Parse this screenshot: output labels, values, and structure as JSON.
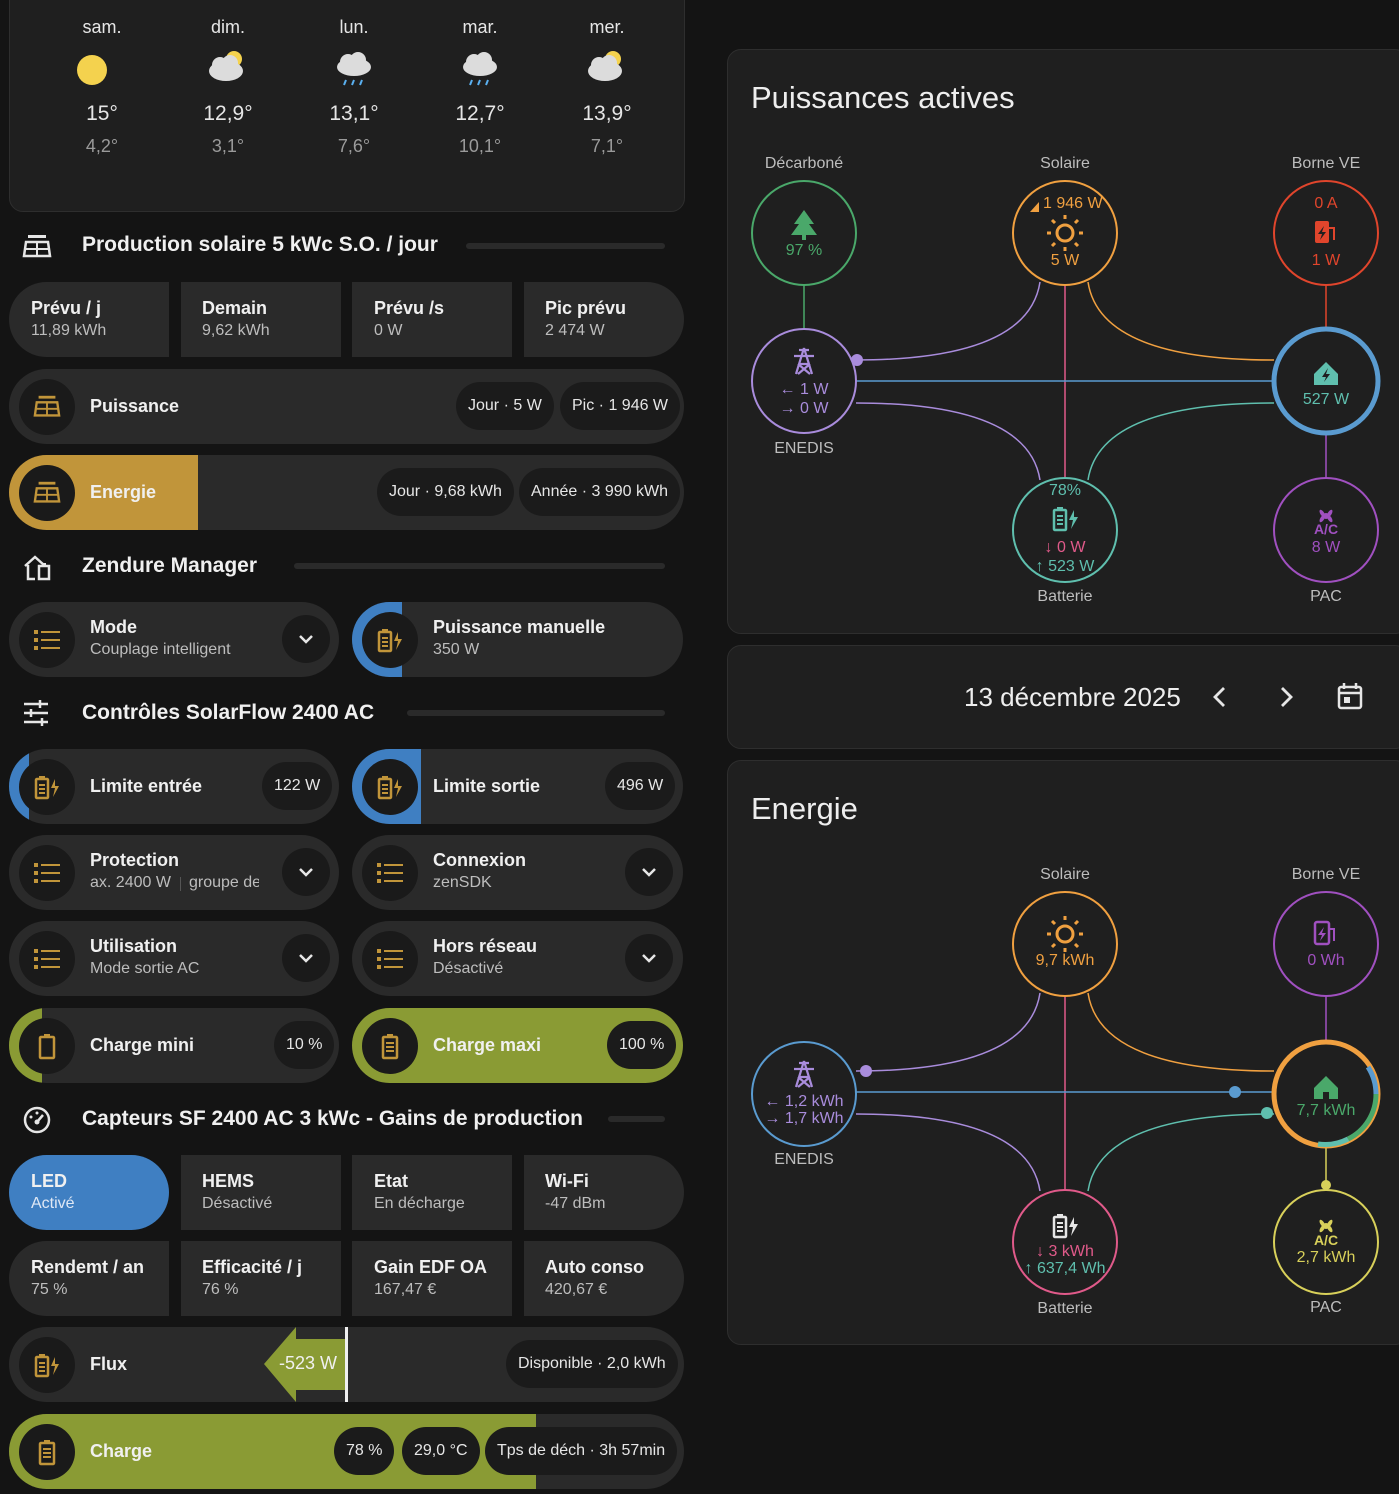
{
  "weather": {
    "days": [
      {
        "day": "sam.",
        "hi": "15°",
        "lo": "4,2°",
        "icon": "sunny-icon"
      },
      {
        "day": "dim.",
        "hi": "12,9°",
        "lo": "3,1°",
        "icon": "partly-cloudy-icon"
      },
      {
        "day": "lun.",
        "hi": "13,1°",
        "lo": "7,6°",
        "icon": "rainy-icon"
      },
      {
        "day": "mar.",
        "hi": "12,7°",
        "lo": "10,1°",
        "icon": "rainy-icon"
      },
      {
        "day": "mer.",
        "hi": "13,9°",
        "lo": "7,1°",
        "icon": "partly-cloudy-icon"
      }
    ]
  },
  "solar": {
    "title": "Production solaire 5 kWc S.O. / jour",
    "stats": [
      {
        "label": "Prévu / j",
        "value": "11,89 kWh"
      },
      {
        "label": "Demain",
        "value": "9,62 kWh"
      },
      {
        "label": "Prévu /s",
        "value": "0 W"
      },
      {
        "label": "Pic prévu",
        "value": "2 474 W"
      }
    ],
    "puissance": {
      "label": "Puissance",
      "chips": [
        "Jour · 5 W",
        "Pic · 1 946 W"
      ]
    },
    "energie": {
      "label": "Energie",
      "chips": [
        "Jour · 9,68 kWh",
        "Année · 3 990 kWh"
      ],
      "fill_fraction": 0.28
    }
  },
  "zendure": {
    "title": "Zendure Manager",
    "mode": {
      "label": "Mode",
      "value": "Couplage intelligent"
    },
    "manual": {
      "label": "Puissance manuelle",
      "value": "350 W"
    }
  },
  "controls": {
    "title": "Contrôles SolarFlow 2400 AC",
    "limite_entree": {
      "label": "Limite entrée",
      "value": "122 W"
    },
    "limite_sortie": {
      "label": "Limite sortie",
      "value": "496 W"
    },
    "protection": {
      "label": "Protection",
      "value": "ax. 2400 W",
      "value2": "groupe de"
    },
    "connexion": {
      "label": "Connexion",
      "value": "zenSDK"
    },
    "utilisation": {
      "label": "Utilisation",
      "value": "Mode sortie AC"
    },
    "hors_reseau": {
      "label": "Hors réseau",
      "value": "Désactivé"
    },
    "charge_mini": {
      "label": "Charge mini",
      "value": "10 %"
    },
    "charge_maxi": {
      "label": "Charge maxi",
      "value": "100 %"
    }
  },
  "sensors": {
    "title": "Capteurs SF 2400 AC 3 kWc - Gains de production",
    "row1": [
      {
        "label": "LED",
        "value": "Activé"
      },
      {
        "label": "HEMS",
        "value": "Désactivé"
      },
      {
        "label": "Etat",
        "value": "En décharge"
      },
      {
        "label": "Wi-Fi",
        "value": "-47 dBm"
      }
    ],
    "row2": [
      {
        "label": "Rendemt / an",
        "value": "75 %"
      },
      {
        "label": "Efficacité / j",
        "value": "76 %"
      },
      {
        "label": "Gain EDF OA",
        "value": "167,47 €"
      },
      {
        "label": "Auto conso",
        "value": "420,67 €"
      }
    ],
    "flux": {
      "label": "Flux",
      "value": "-523 W",
      "chip": "Disponible · 2,0 kWh"
    },
    "charge": {
      "label": "Charge",
      "chips": [
        "78 %",
        "29,0 °C",
        "Tps de déch · 3h 57min"
      ],
      "fill_fraction": 0.78
    }
  },
  "power_flow": {
    "title": "Puissances actives",
    "decarbone": {
      "label": "Décarboné",
      "value": "97 %"
    },
    "solaire": {
      "label": "Solaire",
      "value_top": "1 946 W",
      "value": "5 W"
    },
    "borne": {
      "label": "Borne VE",
      "value_top": "0 A",
      "value": "1 W"
    },
    "enedis": {
      "label": "ENEDIS",
      "in": "1 W",
      "out": "0 W"
    },
    "maison": {
      "value": "527 W"
    },
    "batterie": {
      "label": "Batterie",
      "soc": "78%",
      "in": "0 W",
      "out": "523 W"
    },
    "pac": {
      "label": "PAC",
      "value": "8 W",
      "sub": "A/C"
    }
  },
  "date_nav": {
    "date": "13 décembre 2025"
  },
  "energy_flow": {
    "title": "Energie",
    "solaire": {
      "label": "Solaire",
      "value": "9,7 kWh"
    },
    "borne": {
      "label": "Borne VE",
      "value": "0 Wh"
    },
    "enedis": {
      "label": "ENEDIS",
      "in": "1,2 kWh",
      "out": "1,7 kWh"
    },
    "maison": {
      "value": "7,7 kWh"
    },
    "batterie": {
      "label": "Batterie",
      "in": "3 kWh",
      "out": "637,4 Wh"
    },
    "pac": {
      "label": "PAC",
      "value": "2,7 kWh",
      "sub": "A/C"
    }
  },
  "colors": {
    "gold": "#c1953a",
    "olive": "#8a9b34",
    "blue": "#3f7fc2",
    "solar": "#f0a040",
    "grid": "#a98cdc",
    "battery": "#5fbfae",
    "green": "#4aa86a",
    "red": "#e0452c",
    "purple": "#a050c0",
    "pink": "#e05a8a",
    "yellow": "#d8d05a"
  }
}
